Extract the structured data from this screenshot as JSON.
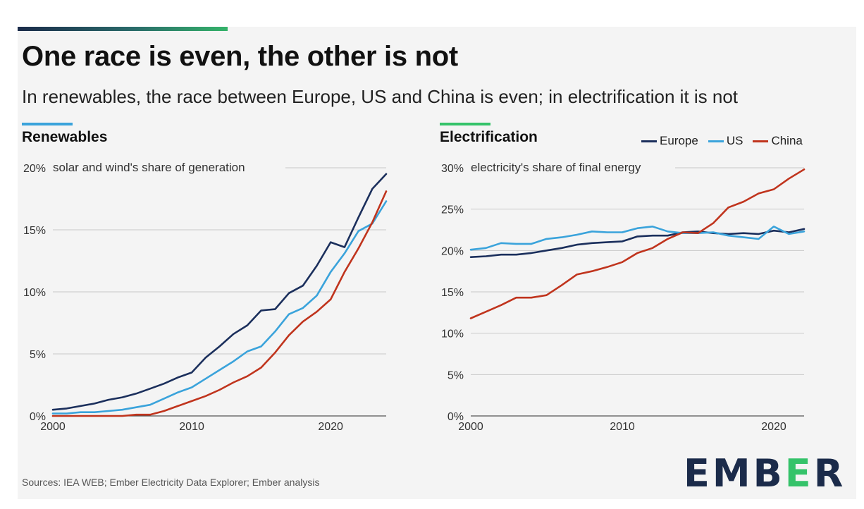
{
  "header": {
    "title": "One race is even, the other is not",
    "subtitle": "In renewables, the race between Europe, US and China is even; in electrification it is not"
  },
  "colors": {
    "europe": "#1b2f5c",
    "us": "#3aa3db",
    "china": "#c0341d",
    "accent_blue": "#3aa3db",
    "accent_green": "#35c36a"
  },
  "legend": [
    {
      "name": "Europe",
      "color": "#1b2f5c"
    },
    {
      "name": "US",
      "color": "#3aa3db"
    },
    {
      "name": "China",
      "color": "#c0341d"
    }
  ],
  "footer": {
    "source": "Sources: IEA WEB; Ember Electricity Data Explorer; Ember analysis"
  },
  "logo": {
    "text_left": "EMB",
    "text_mid": "E",
    "text_right": "R"
  },
  "chart_data": [
    {
      "type": "line",
      "title": "Renewables",
      "ylabel": "solar and wind's share of generation",
      "ylim": [
        0,
        20
      ],
      "xlim": [
        2000,
        2024
      ],
      "yticks": [
        0,
        5,
        10,
        15,
        20
      ],
      "ytick_labels": [
        "0%",
        "5%",
        "10%",
        "15%",
        "20%"
      ],
      "xticks": [
        2000,
        2010,
        2020
      ],
      "grid": true,
      "x": [
        2000,
        2001,
        2002,
        2003,
        2004,
        2005,
        2006,
        2007,
        2008,
        2009,
        2010,
        2011,
        2012,
        2013,
        2014,
        2015,
        2016,
        2017,
        2018,
        2019,
        2020,
        2021,
        2022,
        2023,
        2024
      ],
      "series": [
        {
          "name": "Europe",
          "values": [
            0.5,
            0.6,
            0.8,
            1.0,
            1.3,
            1.5,
            1.8,
            2.2,
            2.6,
            3.1,
            3.5,
            4.7,
            5.6,
            6.6,
            7.3,
            8.5,
            8.6,
            9.9,
            10.5,
            12.1,
            14.0,
            13.6,
            16.0,
            18.3,
            19.5
          ]
        },
        {
          "name": "US",
          "values": [
            0.2,
            0.2,
            0.3,
            0.3,
            0.4,
            0.5,
            0.7,
            0.9,
            1.4,
            1.9,
            2.3,
            3.0,
            3.7,
            4.4,
            5.2,
            5.6,
            6.8,
            8.2,
            8.7,
            9.7,
            11.6,
            13.1,
            14.9,
            15.5,
            17.3
          ]
        },
        {
          "name": "China",
          "values": [
            0.0,
            0.0,
            0.0,
            0.0,
            0.0,
            0.0,
            0.1,
            0.1,
            0.4,
            0.8,
            1.2,
            1.6,
            2.1,
            2.7,
            3.2,
            3.9,
            5.1,
            6.5,
            7.6,
            8.4,
            9.4,
            11.6,
            13.5,
            15.6,
            18.1
          ]
        }
      ]
    },
    {
      "type": "line",
      "title": "Electrification",
      "ylabel": "electricity's share of final energy",
      "ylim": [
        0,
        30
      ],
      "xlim": [
        2000,
        2022
      ],
      "yticks": [
        0,
        5,
        10,
        15,
        20,
        25,
        30
      ],
      "ytick_labels": [
        "0%",
        "5%",
        "10%",
        "15%",
        "20%",
        "25%",
        "30%"
      ],
      "xticks": [
        2000,
        2010,
        2020
      ],
      "grid": true,
      "x": [
        2000,
        2001,
        2002,
        2003,
        2004,
        2005,
        2006,
        2007,
        2008,
        2009,
        2010,
        2011,
        2012,
        2013,
        2014,
        2015,
        2016,
        2017,
        2018,
        2019,
        2020,
        2021,
        2022
      ],
      "series": [
        {
          "name": "Europe",
          "values": [
            19.2,
            19.3,
            19.5,
            19.5,
            19.7,
            20.0,
            20.3,
            20.7,
            20.9,
            21.0,
            21.1,
            21.7,
            21.8,
            21.8,
            22.2,
            22.3,
            22.1,
            22.0,
            22.1,
            22.0,
            22.4,
            22.2,
            22.6
          ]
        },
        {
          "name": "US",
          "values": [
            20.1,
            20.3,
            20.9,
            20.8,
            20.8,
            21.4,
            21.6,
            21.9,
            22.3,
            22.2,
            22.2,
            22.7,
            22.9,
            22.3,
            22.1,
            22.1,
            22.2,
            21.8,
            21.6,
            21.4,
            22.9,
            22.0,
            22.3
          ]
        },
        {
          "name": "China",
          "values": [
            11.8,
            12.6,
            13.4,
            14.3,
            14.3,
            14.6,
            15.8,
            17.1,
            17.5,
            18.0,
            18.6,
            19.7,
            20.3,
            21.4,
            22.2,
            22.1,
            23.3,
            25.2,
            25.9,
            26.9,
            27.4,
            28.7,
            29.8
          ]
        }
      ]
    }
  ]
}
